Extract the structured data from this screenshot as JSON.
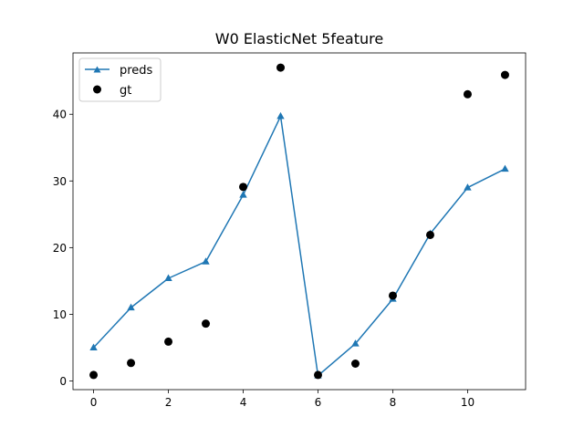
{
  "chart_data": {
    "type": "line",
    "title": "W0 ElasticNet 5feature",
    "xlabel": "",
    "ylabel": "",
    "xlim": [
      -0.55,
      11.55
    ],
    "ylim": [
      -1.3,
      49.2
    ],
    "xticks": [
      0,
      2,
      4,
      6,
      8,
      10
    ],
    "yticks": [
      0,
      10,
      20,
      30,
      40
    ],
    "grid": false,
    "legend_position": "upper-left",
    "x": [
      0,
      1,
      2,
      3,
      4,
      5,
      6,
      7,
      8,
      9,
      10,
      11
    ],
    "series": [
      {
        "name": "preds",
        "style": "line-triangle",
        "color": "#1f77b4",
        "values": [
          5.0,
          11.0,
          15.4,
          17.9,
          27.9,
          39.7,
          0.8,
          5.6,
          12.3,
          22.1,
          29.0,
          31.8
        ]
      },
      {
        "name": "gt",
        "style": "scatter",
        "color": "#000000",
        "values": [
          0.9,
          2.7,
          5.9,
          8.6,
          29.1,
          47.0,
          0.9,
          2.6,
          12.8,
          21.9,
          43.0,
          45.9
        ]
      }
    ]
  }
}
